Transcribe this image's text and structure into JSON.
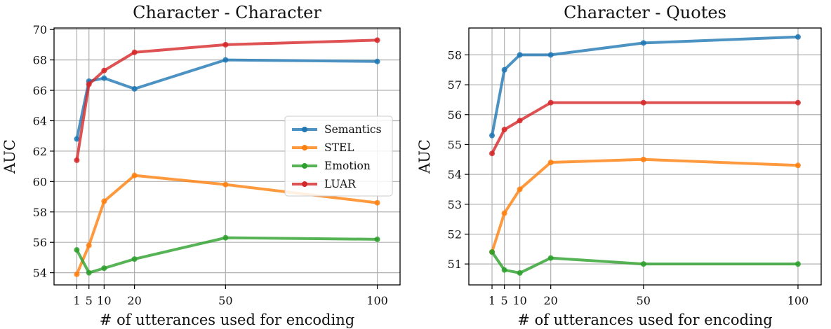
{
  "chart_data": [
    {
      "type": "line",
      "title": "Character - Character",
      "xlabel": "# of utterances used for encoding",
      "ylabel": "AUC",
      "x": [
        1,
        5,
        10,
        20,
        50,
        100
      ],
      "x_ticks": [
        1,
        5,
        10,
        20,
        50,
        100
      ],
      "xlim": [
        -6.5,
        107.5
      ],
      "ylim": [
        53.2,
        70.1
      ],
      "y_ticks": [
        54,
        56,
        58,
        60,
        62,
        64,
        66,
        68,
        70
      ],
      "grid": true,
      "legend": "center-right",
      "series": [
        {
          "name": "Semantics",
          "color": "#1f77b4",
          "values": [
            62.8,
            66.6,
            66.8,
            66.1,
            68.0,
            67.9
          ]
        },
        {
          "name": "STEL",
          "color": "#ff7f0e",
          "values": [
            53.9,
            55.8,
            58.7,
            60.4,
            59.8,
            58.6
          ]
        },
        {
          "name": "Emotion",
          "color": "#2ca02c",
          "values": [
            55.5,
            54.0,
            54.3,
            54.9,
            56.3,
            56.2
          ]
        },
        {
          "name": "LUAR",
          "color": "#d62728",
          "values": [
            61.4,
            66.4,
            67.3,
            68.5,
            69.0,
            69.3
          ]
        }
      ]
    },
    {
      "type": "line",
      "title": "Character - Quotes",
      "xlabel": "# of utterances used for encoding",
      "ylabel": "AUC",
      "x": [
        1,
        5,
        10,
        20,
        50,
        100
      ],
      "x_ticks": [
        1,
        5,
        10,
        20,
        50,
        100
      ],
      "xlim": [
        -6.5,
        107.5
      ],
      "ylim": [
        50.3,
        58.9
      ],
      "y_ticks": [
        51,
        52,
        53,
        54,
        55,
        56,
        57,
        58
      ],
      "grid": true,
      "legend": "none",
      "series": [
        {
          "name": "Semantics",
          "color": "#1f77b4",
          "values": [
            55.3,
            57.5,
            58.0,
            58.0,
            58.4,
            58.6
          ]
        },
        {
          "name": "STEL",
          "color": "#ff7f0e",
          "values": [
            51.4,
            52.7,
            53.5,
            54.4,
            54.5,
            54.3
          ]
        },
        {
          "name": "Emotion",
          "color": "#2ca02c",
          "values": [
            51.4,
            50.8,
            50.7,
            51.2,
            51.0,
            51.0
          ]
        },
        {
          "name": "LUAR",
          "color": "#d62728",
          "values": [
            54.7,
            55.5,
            55.8,
            56.4,
            56.4,
            56.4
          ]
        }
      ]
    }
  ]
}
